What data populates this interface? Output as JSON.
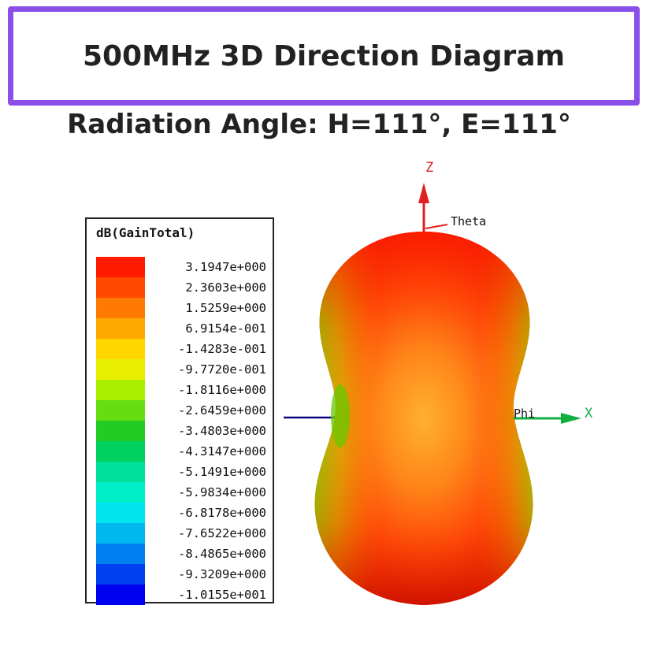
{
  "header": {
    "title": "500MHz 3D Direction Diagram",
    "subtitle": "Radiation Angle: H=111°, E=111°"
  },
  "legend": {
    "title": "dB(GainTotal)",
    "entries": [
      {
        "value": "3.1947e+000",
        "color": "#ff1a00"
      },
      {
        "value": "2.3603e+000",
        "color": "#ff4a00"
      },
      {
        "value": "1.5259e+000",
        "color": "#ff7a00"
      },
      {
        "value": "6.9154e-001",
        "color": "#ffa800"
      },
      {
        "value": "-1.4283e-001",
        "color": "#ffd600"
      },
      {
        "value": "-9.7720e-001",
        "color": "#e8f000"
      },
      {
        "value": "-1.8116e+000",
        "color": "#aaee00"
      },
      {
        "value": "-2.6459e+000",
        "color": "#66dd10"
      },
      {
        "value": "-3.4803e+000",
        "color": "#22cc22"
      },
      {
        "value": "-4.3147e+000",
        "color": "#00d060"
      },
      {
        "value": "-5.1491e+000",
        "color": "#00e09a"
      },
      {
        "value": "-5.9834e+000",
        "color": "#00eec8"
      },
      {
        "value": "-6.8178e+000",
        "color": "#00e4f0"
      },
      {
        "value": "-7.6522e+000",
        "color": "#00b8f0"
      },
      {
        "value": "-8.4865e+000",
        "color": "#0080f0"
      },
      {
        "value": "-9.3209e+000",
        "color": "#0040f0"
      },
      {
        "value": "-1.0155e+001",
        "color": "#0000f0"
      }
    ]
  },
  "axes": {
    "z_label": "Z",
    "theta_label": "Theta",
    "phi_label": "Phi",
    "x_label": "X",
    "z_color": "#e02020",
    "x_color": "#10b040",
    "y_color": "#0a0a80"
  },
  "pattern": {
    "peak_color": "#ff2a00",
    "mid_color": "#ffa020",
    "edge_color": "#a8d800"
  }
}
